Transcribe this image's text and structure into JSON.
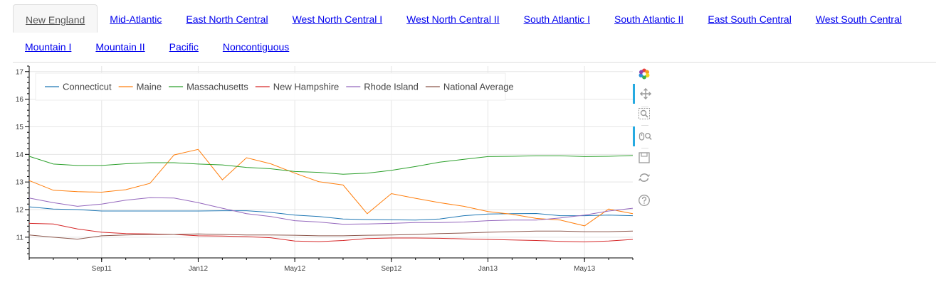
{
  "tabs": {
    "row1": [
      "New England",
      "Mid-Atlantic",
      "East North Central",
      "West North Central I",
      "West North Central II",
      "South Atlantic I",
      "South Atlantic II",
      "East South Central",
      "West South Central"
    ],
    "row2": [
      "Mountain I",
      "Mountain II",
      "Pacific",
      "Noncontiguous"
    ],
    "active": "New England"
  },
  "toolbar": {
    "tools": [
      "bokeh-logo-icon",
      "pan-icon",
      "box-zoom-icon",
      "wheel-zoom-icon",
      "save-icon",
      "reset-icon",
      "help-icon"
    ]
  },
  "chart_data": {
    "type": "line",
    "x": [
      "2011-06",
      "2011-07",
      "2011-08",
      "2011-09",
      "2011-10",
      "2011-11",
      "2011-12",
      "2012-01",
      "2012-02",
      "2012-03",
      "2012-04",
      "2012-05",
      "2012-06",
      "2012-07",
      "2012-08",
      "2012-09",
      "2012-10",
      "2012-11",
      "2012-12",
      "2013-01",
      "2013-02",
      "2013-03",
      "2013-04",
      "2013-05",
      "2013-06",
      "2013-07"
    ],
    "x_ticks": [
      {
        "date": "2011-09",
        "label": "Sep11"
      },
      {
        "date": "2012-01",
        "label": "Jan12"
      },
      {
        "date": "2012-05",
        "label": "May12"
      },
      {
        "date": "2012-09",
        "label": "Sep12"
      },
      {
        "date": "2013-01",
        "label": "Jan13"
      },
      {
        "date": "2013-05",
        "label": "May13"
      }
    ],
    "x_range": [
      "2011-06",
      "2013-07"
    ],
    "ylim": [
      10.25,
      17.2
    ],
    "y_ticks": [
      11,
      12,
      13,
      14,
      15,
      16,
      17
    ],
    "grid": true,
    "legend_position": "top-left",
    "series": [
      {
        "name": "Connecticut",
        "color": "#1f77b4",
        "values": [
          12.1,
          12.02,
          12.0,
          11.95,
          11.95,
          11.95,
          11.95,
          11.95,
          11.96,
          11.96,
          11.9,
          11.8,
          11.75,
          11.66,
          11.64,
          11.63,
          11.62,
          11.66,
          11.78,
          11.84,
          11.85,
          11.86,
          11.78,
          11.78,
          11.8,
          11.78
        ]
      },
      {
        "name": "Maine",
        "color": "#ff7f0e",
        "values": [
          13.05,
          12.7,
          12.65,
          12.63,
          12.72,
          12.95,
          13.98,
          14.18,
          13.08,
          13.88,
          13.66,
          13.32,
          13.01,
          12.89,
          11.85,
          12.58,
          12.41,
          12.25,
          12.12,
          11.93,
          11.83,
          11.68,
          11.62,
          11.41,
          12.02,
          11.85
        ]
      },
      {
        "name": "Massachusetts",
        "color": "#2ca02c",
        "values": [
          13.93,
          13.65,
          13.6,
          13.6,
          13.66,
          13.7,
          13.7,
          13.65,
          13.62,
          13.53,
          13.48,
          13.38,
          13.35,
          13.28,
          13.32,
          13.42,
          13.56,
          13.72,
          13.82,
          13.92,
          13.93,
          13.95,
          13.95,
          13.92,
          13.93,
          13.96
        ]
      },
      {
        "name": "New Hampshire",
        "color": "#d62728",
        "values": [
          11.5,
          11.48,
          11.3,
          11.18,
          11.13,
          11.12,
          11.1,
          11.05,
          11.04,
          11.02,
          10.98,
          10.86,
          10.84,
          10.88,
          10.95,
          10.97,
          10.97,
          10.96,
          10.94,
          10.92,
          10.9,
          10.88,
          10.85,
          10.83,
          10.86,
          10.92
        ]
      },
      {
        "name": "Rhode Island",
        "color": "#9467bd",
        "values": [
          12.42,
          12.25,
          12.12,
          12.2,
          12.34,
          12.43,
          12.42,
          12.25,
          12.05,
          11.85,
          11.75,
          11.6,
          11.55,
          11.47,
          11.48,
          11.5,
          11.53,
          11.53,
          11.55,
          11.6,
          11.62,
          11.62,
          11.7,
          11.8,
          11.95,
          12.05
        ]
      },
      {
        "name": "National Average",
        "color": "#8c564b",
        "values": [
          11.08,
          11.0,
          10.93,
          11.05,
          11.08,
          11.1,
          11.1,
          11.12,
          11.1,
          11.08,
          11.08,
          11.07,
          11.05,
          11.05,
          11.07,
          11.08,
          11.1,
          11.13,
          11.15,
          11.18,
          11.2,
          11.22,
          11.22,
          11.2,
          11.2,
          11.22
        ]
      }
    ]
  }
}
